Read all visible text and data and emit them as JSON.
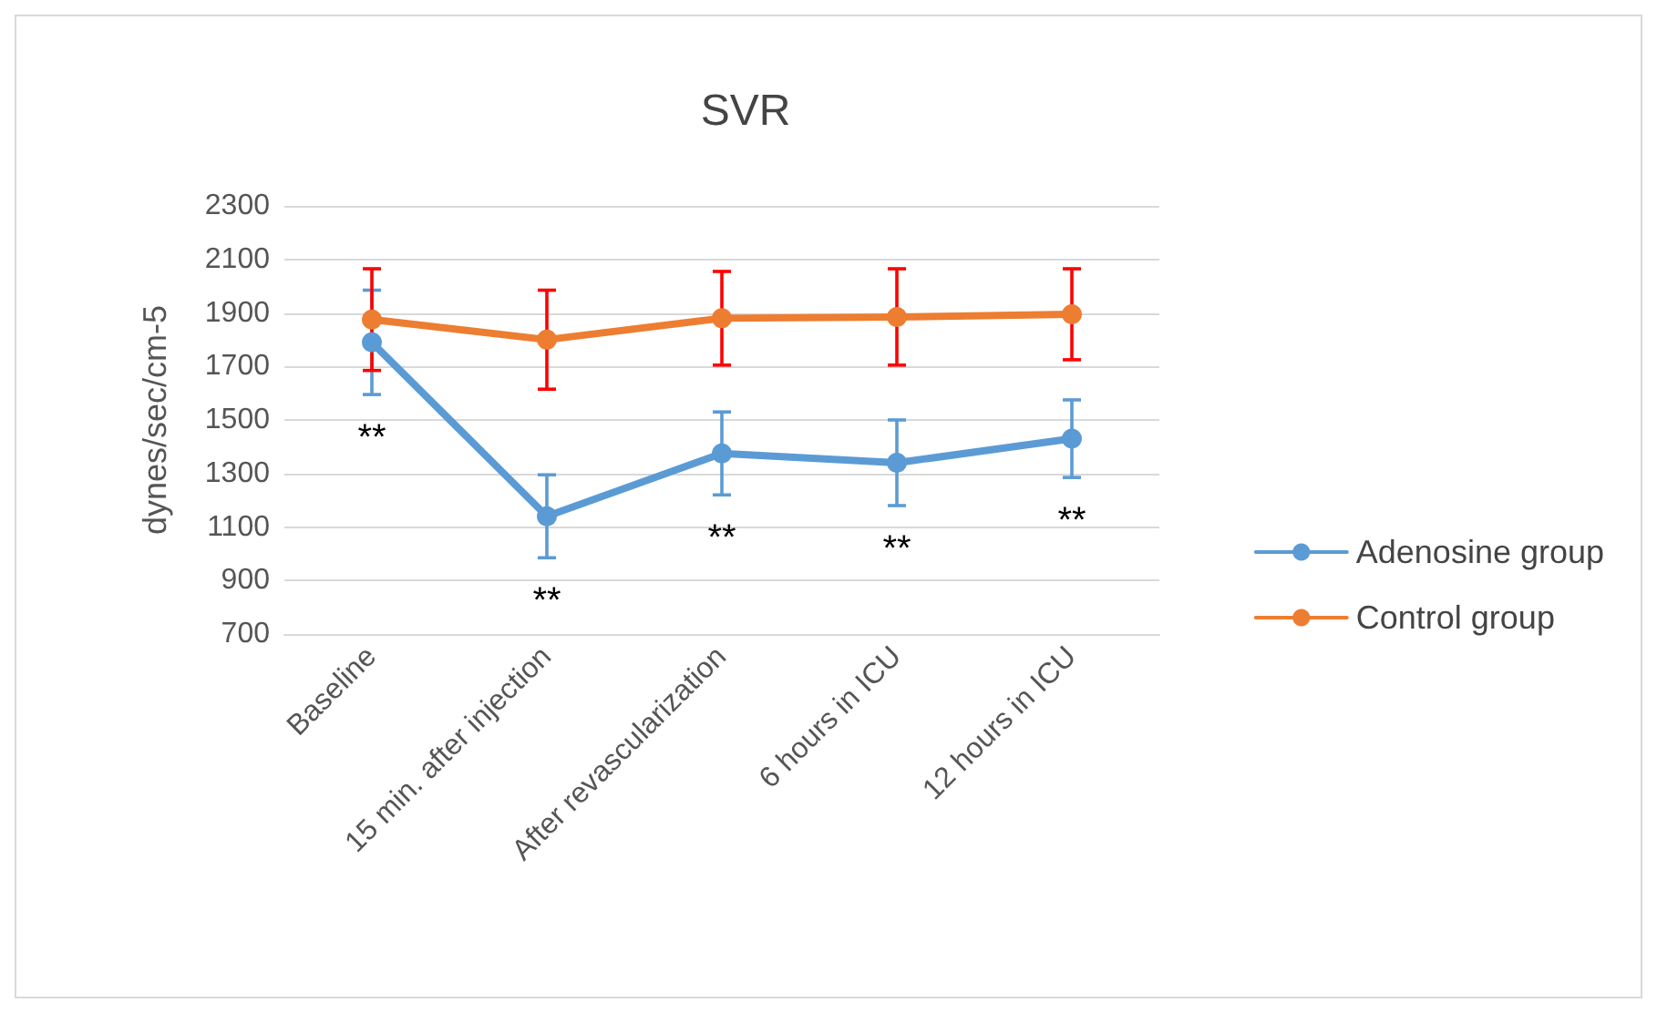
{
  "chart_data": {
    "type": "line",
    "title": "SVR",
    "ylabel": "dynes/sec/cm-5",
    "categories": [
      "Baseline",
      "15 min. after injection",
      "After revascularization",
      "6 hours in ICU",
      "12 hours in ICU"
    ],
    "series": [
      {
        "name": "Adenosine group",
        "color": "#5b9bd5",
        "values": [
          1790,
          1140,
          1375,
          1340,
          1430
        ],
        "errors": [
          195,
          155,
          155,
          160,
          145
        ]
      },
      {
        "name": "Control group",
        "color": "#ed7d31",
        "values": [
          1875,
          1800,
          1880,
          1885,
          1895
        ],
        "errors": [
          190,
          185,
          175,
          180,
          170
        ]
      }
    ],
    "ylim": [
      700,
      2300
    ],
    "yticks": [
      700,
      900,
      1100,
      1300,
      1500,
      1700,
      1900,
      2100,
      2300
    ],
    "grid": "y",
    "legend": "right",
    "marker": "circle",
    "line_style": "solid",
    "annotations": [
      "**",
      "**",
      "**",
      "**",
      "**"
    ]
  }
}
